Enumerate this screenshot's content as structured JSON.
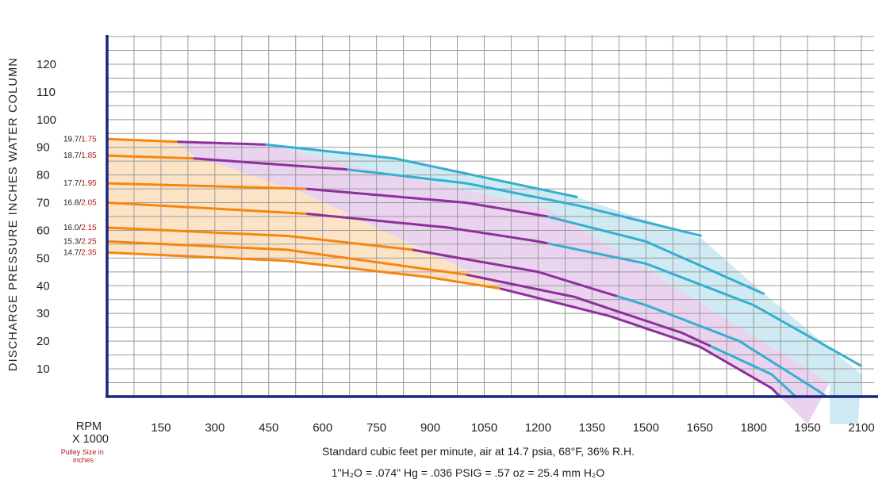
{
  "chart_data": {
    "type": "line",
    "ylabel": "DISCHARGE PRESSURE INCHES WATER COLUMN",
    "xlabel": "Standard cubic feet per minute, air at 14.7 psia, 68°F, 36% R.H.",
    "conversion_note": "1\"H₂O = .074\" Hg = .036 PSIG = .57 oz = 25.4 mm H₂O",
    "rpm_label_line1": "RPM",
    "rpm_label_line2": "X 1000",
    "pulley_label_line1": "Pulley Size in",
    "pulley_label_line2": "inches",
    "xlim": [
      0,
      2125
    ],
    "ylim": [
      -10,
      135
    ],
    "x_ticks": [
      150,
      300,
      450,
      600,
      750,
      900,
      1050,
      1200,
      1350,
      1500,
      1650,
      1800,
      1950,
      2100
    ],
    "y_ticks": [
      10,
      20,
      30,
      40,
      50,
      60,
      70,
      80,
      90,
      100,
      110,
      120
    ],
    "grid": true,
    "zone_colors": {
      "orange": "#f5860f",
      "purple": "#8e2f9c",
      "cyan": "#36aed0",
      "orange_fill": "#fde3c6",
      "purple_fill": "#ead3ee",
      "cyan_fill": "#cfeaf3"
    },
    "region_boundaries": {
      "orange_purple": [
        [
          195,
          92
        ],
        [
          240,
          87
        ],
        [
          555,
          73
        ],
        [
          1094,
          40
        ]
      ],
      "purple_cyan": [
        [
          441,
          91
        ],
        [
          668,
          84
        ],
        [
          1226,
          68
        ],
        [
          2012,
          5
        ]
      ]
    },
    "series": [
      {
        "rpm": "19.7",
        "pulley": "1.75",
        "x": [
          0,
          195,
          441,
          800,
          1310
        ],
        "y": [
          93,
          92,
          91,
          86,
          72
        ],
        "segments": [
          [
            0,
            195,
            "orange"
          ],
          [
            195,
            441,
            "purple"
          ],
          [
            441,
            1310,
            "cyan"
          ]
        ]
      },
      {
        "rpm": "18.7",
        "pulley": "1.85",
        "x": [
          0,
          240,
          668,
          1000,
          1310,
          1655
        ],
        "y": [
          87,
          86,
          82,
          77,
          69,
          58
        ],
        "segments": [
          [
            0,
            240,
            "orange"
          ],
          [
            240,
            668,
            "purple"
          ],
          [
            668,
            1655,
            "cyan"
          ]
        ]
      },
      {
        "rpm": "17.7",
        "pulley": "1.95",
        "x": [
          0,
          555,
          1000,
          1226,
          1500,
          1830
        ],
        "y": [
          77,
          75,
          70,
          65,
          56,
          37
        ],
        "segments": [
          [
            0,
            555,
            "orange"
          ],
          [
            555,
            1226,
            "purple"
          ],
          [
            1226,
            1830,
            "cyan"
          ]
        ]
      },
      {
        "rpm": "16.8",
        "pulley": "2.05",
        "x": [
          0,
          555,
          950,
          1200,
          1500,
          1800,
          2100
        ],
        "y": [
          70,
          66,
          61,
          56,
          48,
          33,
          11
        ],
        "segments": [
          [
            0,
            555,
            "orange"
          ],
          [
            555,
            1226,
            "purple"
          ],
          [
            1226,
            2100,
            "cyan"
          ]
        ]
      },
      {
        "rpm": "16.0",
        "pulley": "2.15",
        "x": [
          0,
          500,
          850,
          1200,
          1500,
          1760,
          1980,
          2110
        ],
        "y": [
          61,
          58,
          53,
          45,
          33,
          20,
          2,
          -10
        ],
        "segments": [
          [
            0,
            850,
            "orange"
          ],
          [
            850,
            1420,
            "purple"
          ],
          [
            1420,
            2110,
            "cyan"
          ]
        ]
      },
      {
        "rpm": "15.3",
        "pulley": "2.25",
        "x": [
          0,
          500,
          1000,
          1300,
          1600,
          1850,
          2000
        ],
        "y": [
          56,
          53,
          44,
          36,
          23,
          8,
          -10
        ],
        "segments": [
          [
            0,
            1000,
            "orange"
          ],
          [
            1000,
            1680,
            "purple"
          ],
          [
            1680,
            2000,
            "cyan"
          ]
        ]
      },
      {
        "rpm": "14.7",
        "pulley": "2.35",
        "x": [
          0,
          500,
          900,
          1094,
          1400,
          1650,
          1850,
          1950
        ],
        "y": [
          52,
          49,
          43,
          39,
          29,
          18,
          3,
          -10
        ],
        "segments": [
          [
            0,
            1094,
            "orange"
          ],
          [
            1094,
            1950,
            "purple"
          ]
        ]
      }
    ]
  }
}
